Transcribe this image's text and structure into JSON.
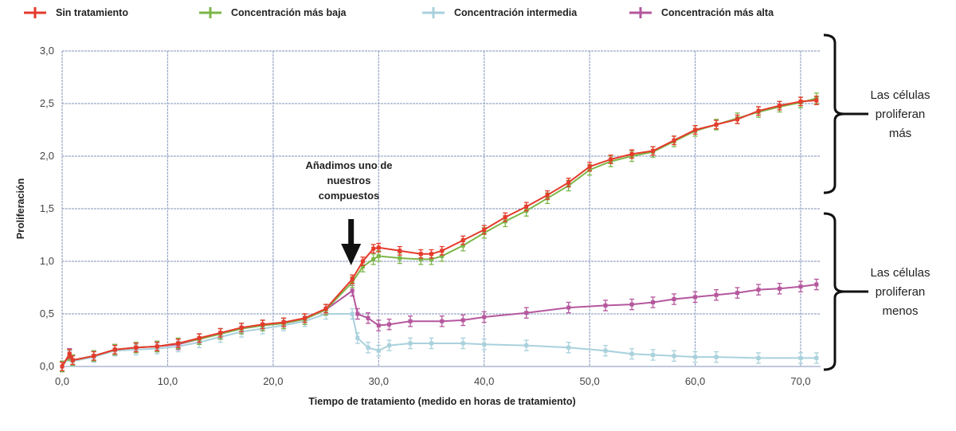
{
  "chart_data": {
    "type": "line",
    "title": "",
    "xlabel": "Tiempo de tratamiento  (medido en horas de tratamiento)",
    "ylabel": "Proliferación",
    "xlim": [
      0,
      72
    ],
    "ylim": [
      0,
      3.0
    ],
    "x_ticks": [
      "0,0",
      "10,0",
      "20,0",
      "30,0",
      "40,0",
      "50,0",
      "60,0",
      "70,0"
    ],
    "x_tick_values": [
      0,
      10,
      20,
      30,
      40,
      50,
      60,
      70
    ],
    "y_ticks": [
      "0,0",
      "0,5",
      "1,0",
      "1,5",
      "2,0",
      "2,5",
      "3,0"
    ],
    "y_tick_values": [
      0,
      0.5,
      1.0,
      1.5,
      2.0,
      2.5,
      3.0
    ],
    "grid": true,
    "legend_position": "top",
    "series": [
      {
        "name": "Sin tratamiento",
        "color": "#e53a2c",
        "error": 0.04,
        "x": [
          0,
          0.7,
          1,
          3,
          5,
          7,
          9,
          11,
          13,
          15,
          17,
          19,
          21,
          23,
          25,
          27.5,
          28.5,
          29.5,
          30,
          32,
          34,
          35,
          36,
          38,
          40,
          42,
          44,
          46,
          48,
          50,
          52,
          54,
          56,
          58,
          60,
          62,
          64,
          66,
          68,
          70,
          71.5
        ],
        "y": [
          0,
          0.12,
          0.06,
          0.1,
          0.16,
          0.18,
          0.19,
          0.22,
          0.27,
          0.32,
          0.37,
          0.4,
          0.42,
          0.46,
          0.55,
          0.83,
          1.0,
          1.12,
          1.13,
          1.1,
          1.07,
          1.07,
          1.1,
          1.2,
          1.3,
          1.42,
          1.52,
          1.63,
          1.75,
          1.9,
          1.97,
          2.02,
          2.05,
          2.15,
          2.25,
          2.3,
          2.35,
          2.43,
          2.48,
          2.52,
          2.53
        ]
      },
      {
        "name": "Concentración más baja",
        "color": "#7cb648",
        "error": 0.05,
        "x": [
          0,
          0.7,
          1,
          3,
          5,
          7,
          9,
          11,
          13,
          15,
          17,
          19,
          21,
          23,
          25,
          27.5,
          28.5,
          29.5,
          30,
          32,
          34,
          35,
          36,
          38,
          40,
          42,
          44,
          46,
          48,
          50,
          52,
          54,
          56,
          58,
          60,
          62,
          64,
          66,
          68,
          70,
          71.5
        ],
        "y": [
          0,
          0.11,
          0.06,
          0.1,
          0.16,
          0.18,
          0.19,
          0.22,
          0.26,
          0.31,
          0.36,
          0.39,
          0.41,
          0.45,
          0.54,
          0.8,
          0.95,
          1.02,
          1.05,
          1.03,
          1.02,
          1.02,
          1.05,
          1.15,
          1.27,
          1.38,
          1.48,
          1.6,
          1.72,
          1.87,
          1.95,
          2.0,
          2.04,
          2.14,
          2.24,
          2.3,
          2.36,
          2.42,
          2.47,
          2.51,
          2.55
        ]
      },
      {
        "name": "Concentración intermedia",
        "color": "#a9d1dc",
        "error": 0.05,
        "x": [
          0,
          0.7,
          1,
          3,
          5,
          7,
          9,
          11,
          13,
          15,
          17,
          19,
          21,
          23,
          25,
          27.5,
          28,
          29,
          30,
          31,
          33,
          35,
          38,
          40,
          44,
          48,
          51.5,
          54,
          56,
          58,
          60,
          62,
          66,
          70,
          71.5
        ],
        "y": [
          0,
          0.1,
          0.05,
          0.09,
          0.15,
          0.16,
          0.17,
          0.19,
          0.23,
          0.28,
          0.33,
          0.36,
          0.39,
          0.43,
          0.5,
          0.5,
          0.27,
          0.18,
          0.15,
          0.2,
          0.22,
          0.22,
          0.22,
          0.21,
          0.2,
          0.18,
          0.15,
          0.12,
          0.11,
          0.1,
          0.09,
          0.09,
          0.08,
          0.08,
          0.08
        ]
      },
      {
        "name": "Concentración más alta",
        "color": "#b5579d",
        "error": 0.05,
        "x": [
          0,
          0.7,
          1,
          3,
          5,
          7,
          9,
          11,
          13,
          15,
          17,
          19,
          21,
          23,
          25,
          27.5,
          28,
          29,
          30,
          31,
          33,
          36,
          38,
          40,
          44,
          48,
          51.5,
          54,
          56,
          58,
          60,
          62,
          64,
          66,
          68,
          70,
          71.5
        ],
        "y": [
          0,
          0.12,
          0.06,
          0.1,
          0.16,
          0.18,
          0.19,
          0.21,
          0.26,
          0.31,
          0.36,
          0.39,
          0.41,
          0.45,
          0.54,
          0.72,
          0.5,
          0.46,
          0.39,
          0.4,
          0.43,
          0.43,
          0.44,
          0.47,
          0.51,
          0.56,
          0.58,
          0.59,
          0.61,
          0.64,
          0.66,
          0.68,
          0.7,
          0.73,
          0.74,
          0.76,
          0.78
        ]
      }
    ],
    "annotations": {
      "arrow_label": [
        "Añadimos uno de",
        "nuestros",
        "compuestos"
      ],
      "arrow_x": 27.5,
      "upper_group": [
        "Las células",
        "proliferan",
        "más"
      ],
      "lower_group": [
        "Las células",
        "proliferan",
        "menos"
      ]
    }
  }
}
